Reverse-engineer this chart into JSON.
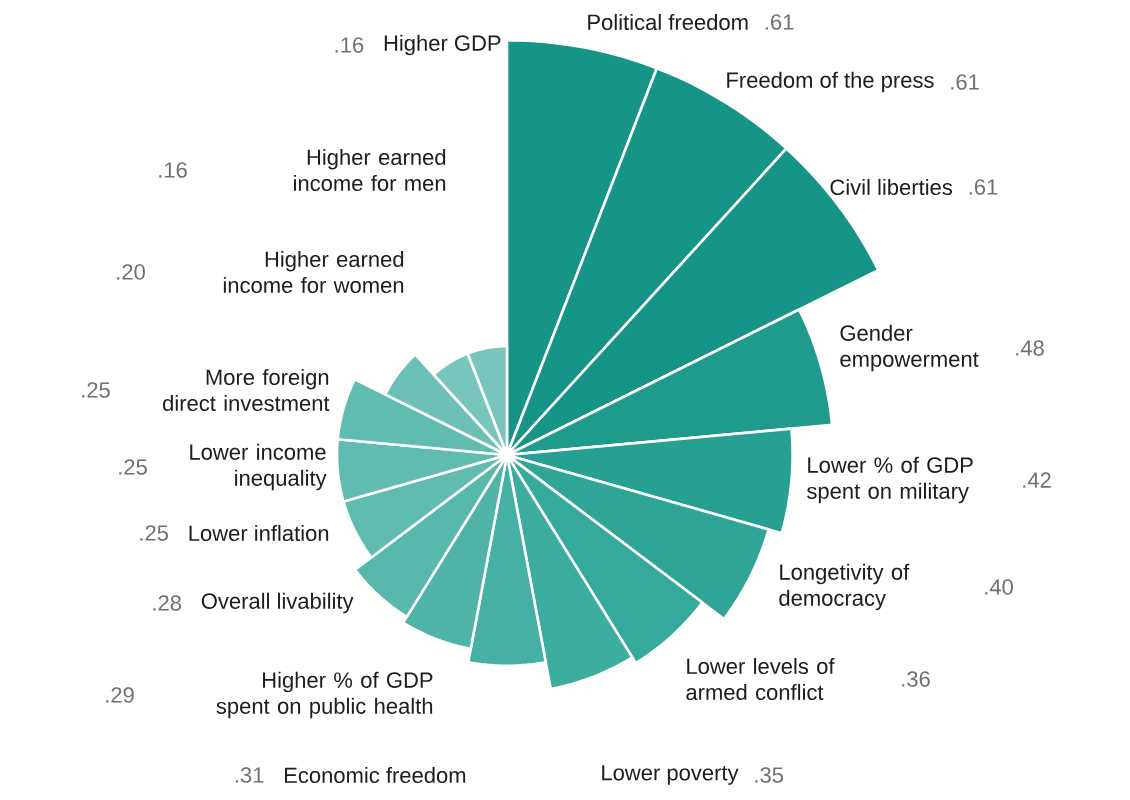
{
  "chart_data": {
    "type": "other",
    "categories": [
      "Political freedom",
      "Freedom of the press",
      "Civil liberties",
      "Gender empowerment",
      "Lower % of GDP spent on military",
      "Longetivity of democracy",
      "Lower levels of armed conflict",
      "Lower poverty",
      "Economic freedom",
      "Higher % of GDP spent on public health",
      "Overall livability",
      "Lower inflation",
      "Lower income inequality",
      "More foreign direct investment",
      "Higher earned income for women",
      "Higher earned income for men",
      "Higher GDP"
    ],
    "values": [
      0.61,
      0.61,
      0.61,
      0.48,
      0.42,
      0.4,
      0.36,
      0.35,
      0.31,
      0.29,
      0.28,
      0.25,
      0.25,
      0.25,
      0.2,
      0.16,
      0.16
    ],
    "value_labels": [
      ".61",
      ".61",
      ".61",
      ".48",
      ".42",
      ".40",
      ".36",
      ".35",
      ".31",
      ".29",
      ".28",
      ".25",
      ".25",
      ".25",
      ".20",
      ".16",
      ".16"
    ],
    "colors": [
      "#179488",
      "#179488",
      "#179488",
      "#1f9b8e",
      "#26a093",
      "#2ea597",
      "#35a99b",
      "#3cad9f",
      "#45b0a3",
      "#4fb4a7",
      "#58b8ab",
      "#61bcb0",
      "#61bcb0",
      "#61bcb0",
      "#6cc0b5",
      "#78c5bb",
      "#78c5bb"
    ]
  }
}
